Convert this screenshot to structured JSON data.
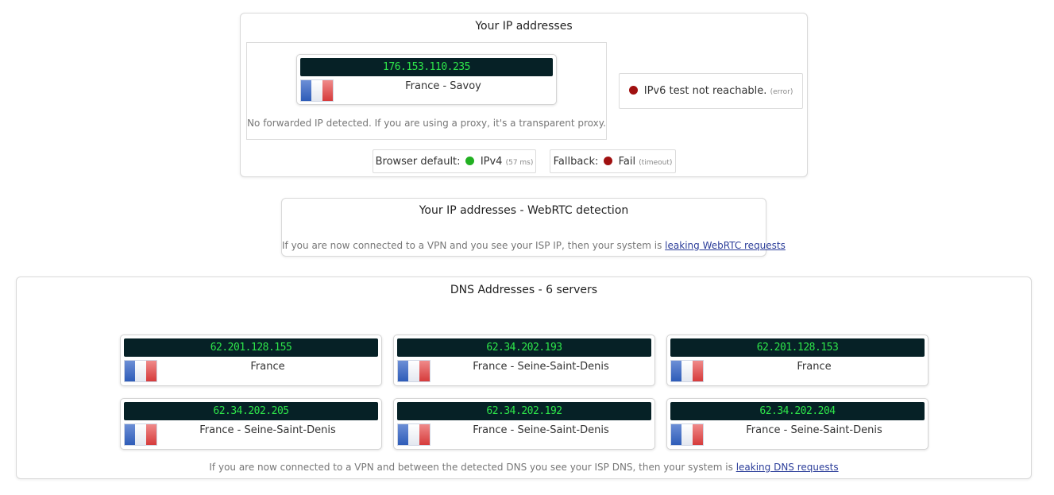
{
  "ip_section": {
    "title": "Your IP addresses",
    "ip": "176.153.110.235",
    "location": "France - Savoy",
    "forwarded_note": "No forwarded IP detected. If you are using a proxy, it's a transparent proxy.",
    "ipv6_text": "IPv6 test not reachable.",
    "ipv6_note": "(error)",
    "browser_default_label": "Browser default:",
    "browser_default_value": "IPv4",
    "browser_default_ms": "(57 ms)",
    "fallback_label": "Fallback:",
    "fallback_value": "Fail",
    "fallback_note": "(timeout)"
  },
  "webrtc_section": {
    "title": "Your IP addresses - WebRTC detection",
    "note_prefix": "If you are now connected to a VPN and you see your ISP IP, then your system is",
    "link": "leaking WebRTC requests"
  },
  "dns_section": {
    "title": "DNS Addresses - 6 servers",
    "servers": [
      {
        "ip": "62.201.128.155",
        "location": "France"
      },
      {
        "ip": "62.34.202.193",
        "location": "France - Seine-Saint-Denis"
      },
      {
        "ip": "62.201.128.153",
        "location": "France"
      },
      {
        "ip": "62.34.202.205",
        "location": "France - Seine-Saint-Denis"
      },
      {
        "ip": "62.34.202.192",
        "location": "France - Seine-Saint-Denis"
      },
      {
        "ip": "62.34.202.204",
        "location": "France - Seine-Saint-Denis"
      }
    ],
    "note_prefix": "If you are now connected to a VPN and between the detected DNS you see your ISP DNS, then your system is",
    "link": "leaking DNS requests"
  },
  "colors": {
    "ip_bar_bg": "#062126",
    "ip_text": "#2ee64a",
    "status_ok": "#22b022",
    "status_error": "#a01010",
    "link": "#2c3e9a"
  },
  "icons": {
    "flag": "france-flag-icon",
    "status_ok": "green-dot-icon",
    "status_error": "red-dot-icon"
  }
}
